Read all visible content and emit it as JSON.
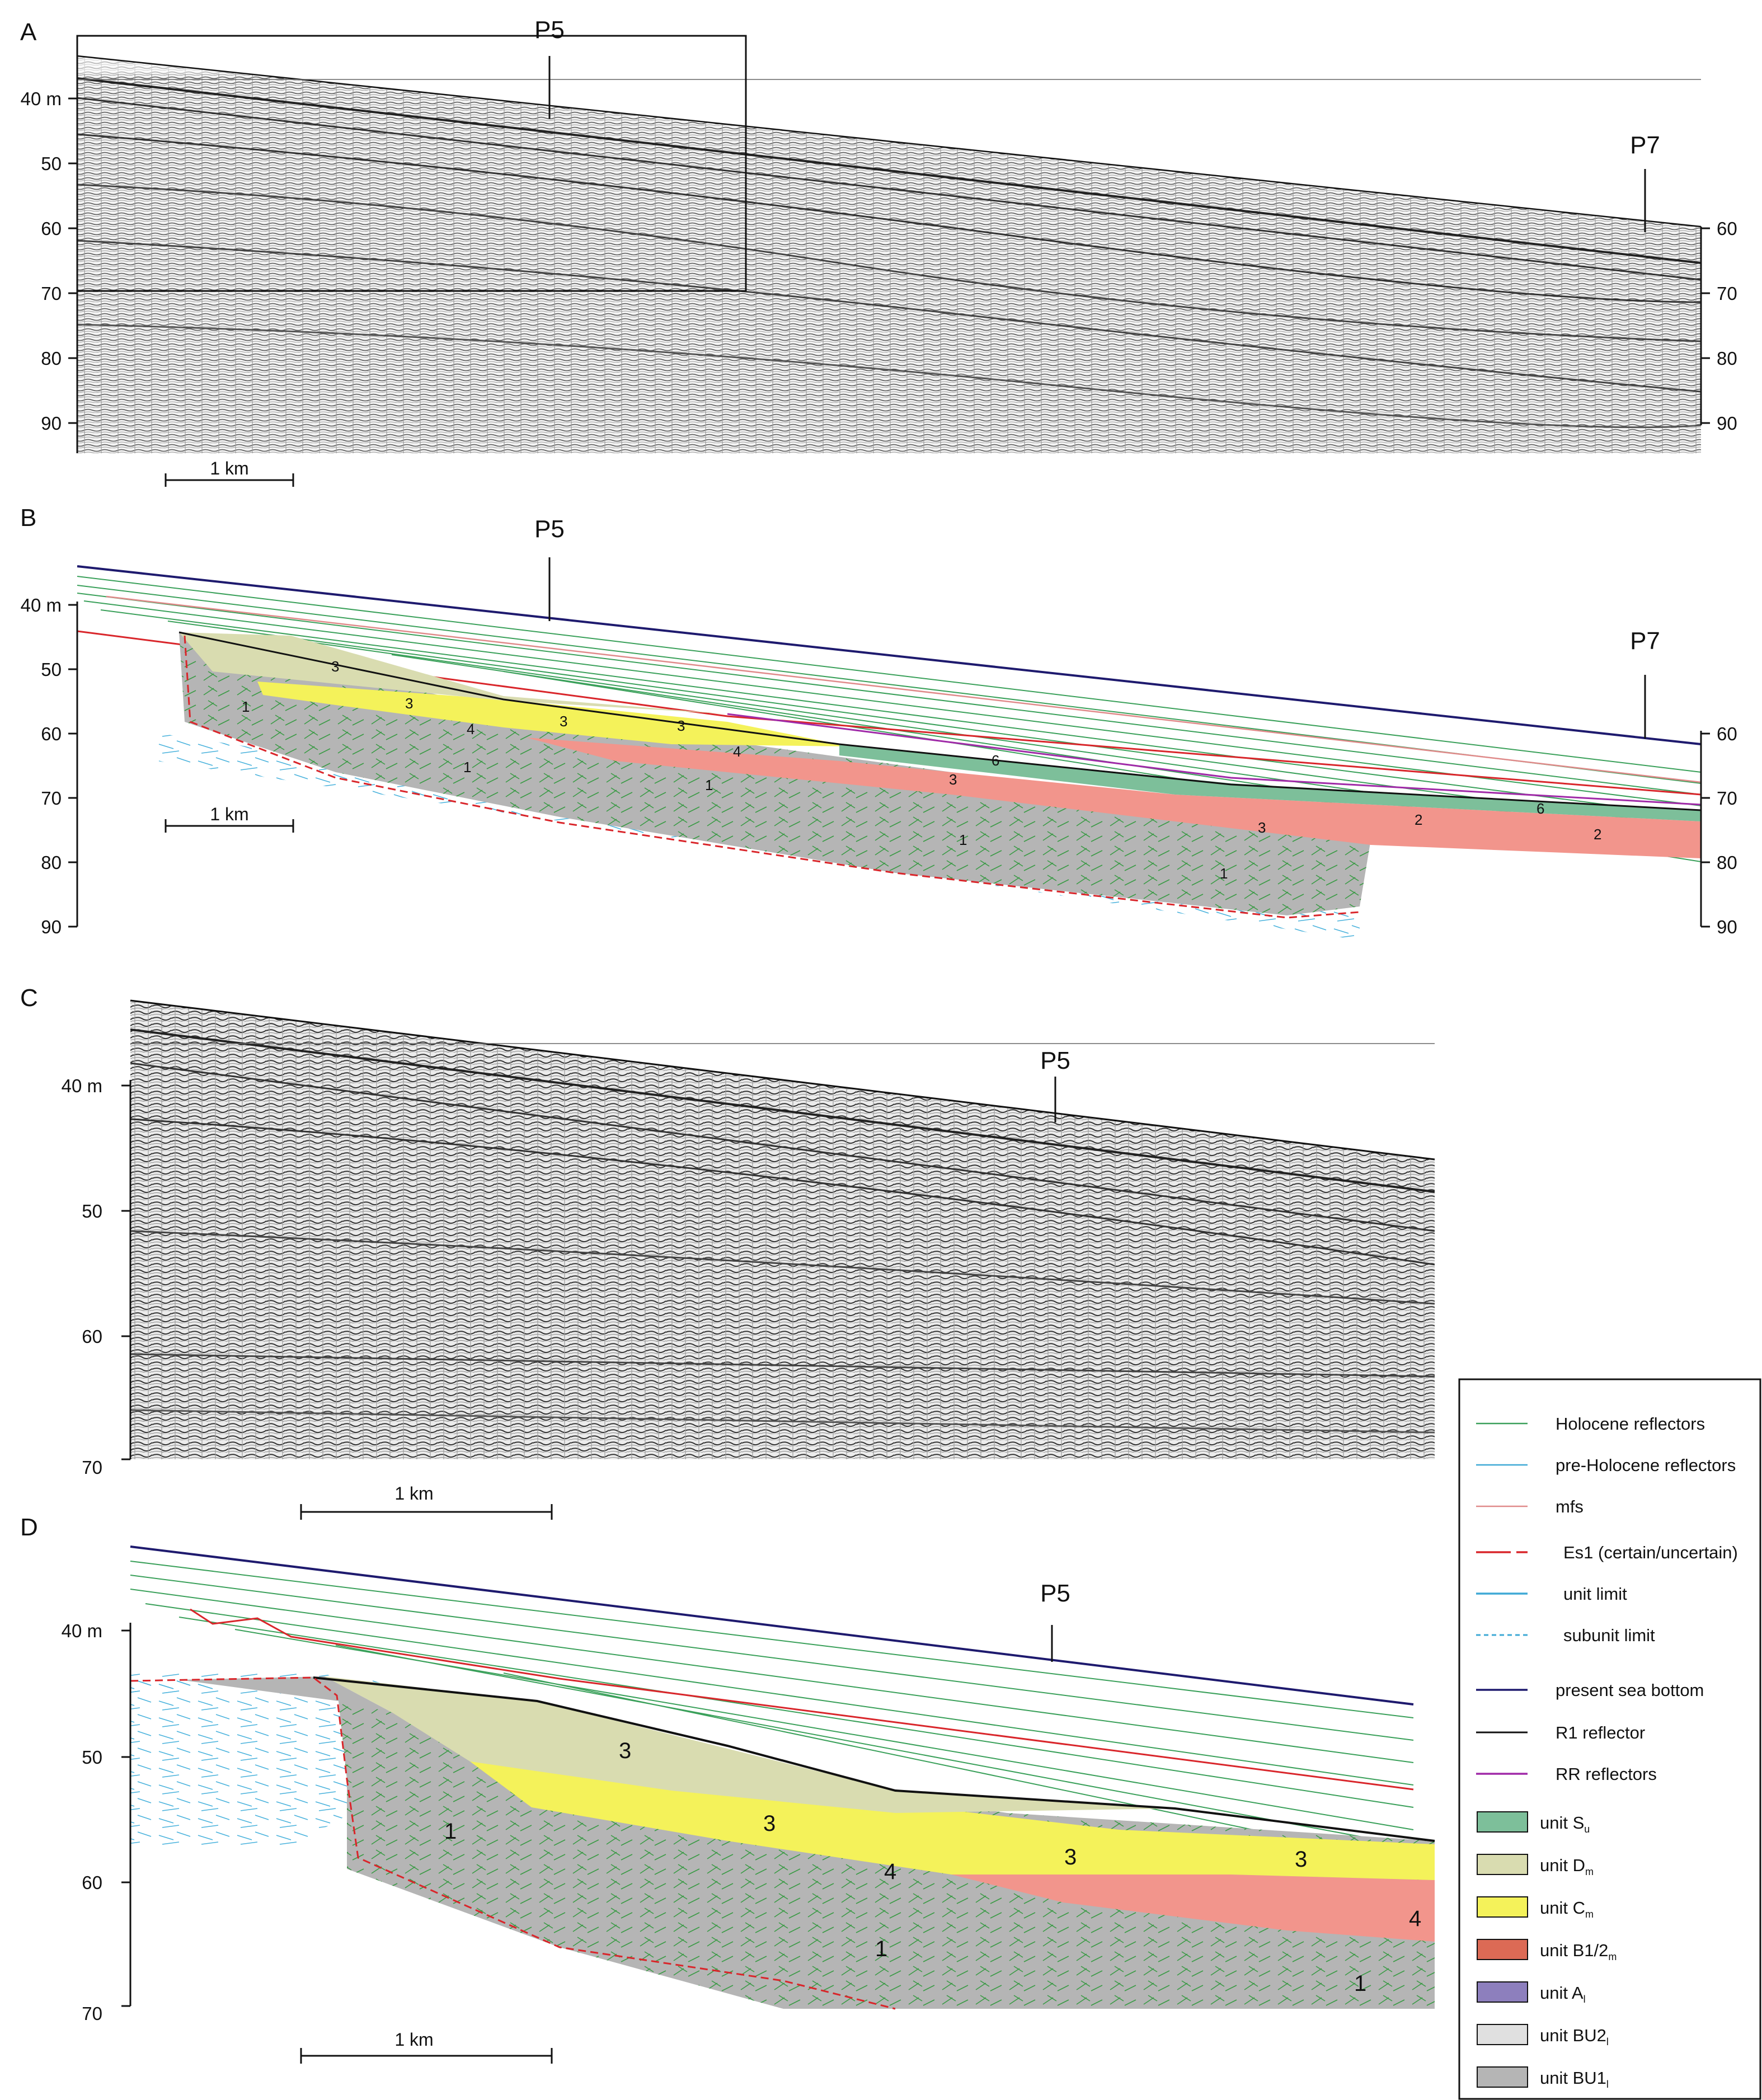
{
  "panels": {
    "a": {
      "letter": "A",
      "depth_unit_label": "40 m",
      "depth_ticks": [
        "50",
        "60",
        "70",
        "80",
        "90"
      ],
      "right_ticks": [
        "60",
        "70",
        "80",
        "90"
      ],
      "scale_bar": "1 km",
      "wells": [
        "P5",
        "P7"
      ]
    },
    "b": {
      "letter": "B",
      "depth_unit_label": "40 m",
      "depth_ticks": [
        "50",
        "60",
        "70",
        "80",
        "90"
      ],
      "right_ticks": [
        "60",
        "70",
        "80",
        "90"
      ],
      "scale_bar": "1 km",
      "wells": [
        "P5",
        "P7"
      ]
    },
    "c": {
      "letter": "C",
      "depth_unit_label": "40 m",
      "depth_ticks": [
        "50",
        "60",
        "70"
      ],
      "scale_bar": "1 km",
      "wells": [
        "P5"
      ]
    },
    "d": {
      "letter": "D",
      "depth_unit_label": "40 m",
      "depth_ticks": [
        "50",
        "60",
        "70"
      ],
      "scale_bar": "1 km",
      "wells": [
        "P5"
      ]
    }
  },
  "unit_numbers": [
    "1",
    "2",
    "3",
    "4",
    "6"
  ],
  "legend": {
    "line_items": [
      {
        "label": "Holocene reflectors",
        "color": "#3aa05a"
      },
      {
        "label": "pre-Holocene reflectors",
        "color": "#3fa9d6"
      },
      {
        "label": "mfs",
        "color": "#e08a8a"
      },
      {
        "label": "Es1 (certain/uncertain)",
        "color": "#d9262b"
      },
      {
        "label": "unit limit",
        "color": "#3fa9d6"
      },
      {
        "label": "subunit limit",
        "color": "#3fa9d6"
      },
      {
        "label": "present sea bottom",
        "color": "#1e1a6e"
      },
      {
        "label": "R1 reflector",
        "color": "#111111"
      },
      {
        "label": "RR reflectors",
        "color": "#a02aa8"
      }
    ],
    "unit_items": [
      {
        "label": "unit S",
        "sub": "u",
        "color": "#7dbf9a"
      },
      {
        "label": "unit D",
        "sub": "m",
        "color": "#d9dcb0"
      },
      {
        "label": "unit C",
        "sub": "m",
        "color": "#f4f25a"
      },
      {
        "label": "unit B1/2",
        "sub": "m",
        "color": "#dc6a55"
      },
      {
        "label": "unit A",
        "sub": "l",
        "color": "#8d7fbd"
      },
      {
        "label": "unit BU2",
        "sub": "l",
        "color": "#e0e0e0"
      },
      {
        "label": "unit BU1",
        "sub": "l",
        "color": "#b5b5b5"
      }
    ]
  }
}
